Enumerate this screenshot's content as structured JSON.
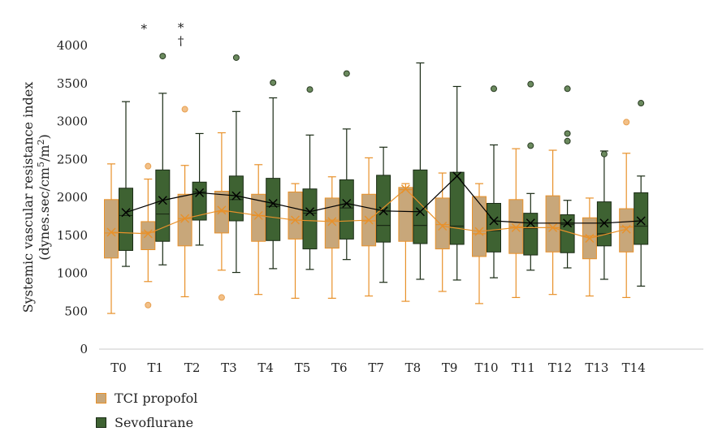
{
  "chart_data": {
    "type": "box",
    "ylabel_line1": "Systemic vascular resistance index",
    "ylabel_line2": "(dynes.sec/cm",
    "ylabel_sup1": "5",
    "ylabel_mid": "/m",
    "ylabel_sup2": "2",
    "ylabel_end": ")",
    "ylim": [
      0,
      4000
    ],
    "yticks": [
      0,
      500,
      1000,
      1500,
      2000,
      2500,
      3000,
      3500,
      4000
    ],
    "categories": [
      "T0",
      "T1",
      "T2",
      "T3",
      "T4",
      "T5",
      "T6",
      "T7",
      "T8",
      "T9",
      "T10",
      "T11",
      "T12",
      "T13",
      "T14"
    ],
    "annotations": [
      {
        "category": "T1",
        "text": "*",
        "value": 4250
      },
      {
        "category": "T2",
        "text": "*",
        "value": 4270
      },
      {
        "category": "T2",
        "text": "†",
        "value": 4090
      }
    ],
    "series": [
      {
        "name": "TCI propofol",
        "fill": "#c8a77a",
        "stroke": "#e8912a",
        "mean_marker": "#e8912a",
        "boxes": [
          {
            "min": 470,
            "q1": 1200,
            "median": 1530,
            "q3": 1970,
            "max": 2440,
            "mean": 1540,
            "outliers": []
          },
          {
            "min": 890,
            "q1": 1310,
            "median": 1540,
            "q3": 1680,
            "max": 2240,
            "mean": 1520,
            "outliers": [
              2410,
              580
            ]
          },
          {
            "min": 690,
            "q1": 1360,
            "median": 1720,
            "q3": 2040,
            "max": 2420,
            "mean": 1720,
            "outliers": [
              3160
            ]
          },
          {
            "min": 1040,
            "q1": 1530,
            "median": 1810,
            "q3": 2080,
            "max": 2850,
            "mean": 1830,
            "outliers": [
              680
            ]
          },
          {
            "min": 720,
            "q1": 1420,
            "median": 1760,
            "q3": 2040,
            "max": 2430,
            "mean": 1760,
            "outliers": []
          },
          {
            "min": 670,
            "q1": 1450,
            "median": 1700,
            "q3": 2070,
            "max": 2180,
            "mean": 1700,
            "outliers": []
          },
          {
            "min": 670,
            "q1": 1330,
            "median": 1700,
            "q3": 1990,
            "max": 2270,
            "mean": 1680,
            "outliers": []
          },
          {
            "min": 700,
            "q1": 1360,
            "median": 1690,
            "q3": 2040,
            "max": 2520,
            "mean": 1700,
            "outliers": []
          },
          {
            "min": 630,
            "q1": 1420,
            "median": 2100,
            "q3": 2130,
            "max": 2180,
            "mean": 2110,
            "outliers": []
          },
          {
            "min": 760,
            "q1": 1320,
            "median": 1640,
            "q3": 1990,
            "max": 2320,
            "mean": 1620,
            "outliers": []
          },
          {
            "min": 600,
            "q1": 1220,
            "median": 1520,
            "q3": 2010,
            "max": 2180,
            "mean": 1550,
            "outliers": []
          },
          {
            "min": 680,
            "q1": 1260,
            "median": 1610,
            "q3": 1970,
            "max": 2640,
            "mean": 1600,
            "outliers": []
          },
          {
            "min": 720,
            "q1": 1280,
            "median": 1600,
            "q3": 2020,
            "max": 2620,
            "mean": 1600,
            "outliers": []
          },
          {
            "min": 700,
            "q1": 1190,
            "median": 1490,
            "q3": 1730,
            "max": 1990,
            "mean": 1460,
            "outliers": []
          },
          {
            "min": 680,
            "q1": 1280,
            "median": 1610,
            "q3": 1850,
            "max": 2580,
            "mean": 1580,
            "outliers": [
              2990
            ]
          }
        ]
      },
      {
        "name": "Sevoflurane",
        "fill": "#3e6232",
        "stroke": "#1a2b15",
        "mean_marker": "#000000",
        "boxes": [
          {
            "min": 1090,
            "q1": 1300,
            "median": 1760,
            "q3": 2120,
            "max": 3260,
            "mean": 1800,
            "outliers": []
          },
          {
            "min": 1110,
            "q1": 1420,
            "median": 1780,
            "q3": 2360,
            "max": 3370,
            "mean": 1960,
            "outliers": [
              3860
            ]
          },
          {
            "min": 1370,
            "q1": 1700,
            "median": 2070,
            "q3": 2200,
            "max": 2840,
            "mean": 2060,
            "outliers": []
          },
          {
            "min": 1010,
            "q1": 1690,
            "median": 1970,
            "q3": 2280,
            "max": 3130,
            "mean": 2020,
            "outliers": [
              3840
            ]
          },
          {
            "min": 1060,
            "q1": 1430,
            "median": 1880,
            "q3": 2250,
            "max": 3310,
            "mean": 1920,
            "outliers": [
              3510
            ]
          },
          {
            "min": 1050,
            "q1": 1320,
            "median": 1790,
            "q3": 2110,
            "max": 2820,
            "mean": 1810,
            "outliers": [
              3420
            ]
          },
          {
            "min": 1180,
            "q1": 1450,
            "median": 1860,
            "q3": 2230,
            "max": 2900,
            "mean": 1920,
            "outliers": [
              3630
            ]
          },
          {
            "min": 880,
            "q1": 1410,
            "median": 1630,
            "q3": 2290,
            "max": 2660,
            "mean": 1820,
            "outliers": []
          },
          {
            "min": 920,
            "q1": 1390,
            "median": 1630,
            "q3": 2360,
            "max": 3770,
            "mean": 1810,
            "outliers": []
          },
          {
            "min": 910,
            "q1": 1380,
            "median": 1620,
            "q3": 2330,
            "max": 3460,
            "mean": 2280,
            "outliers": []
          },
          {
            "min": 940,
            "q1": 1280,
            "median": 1560,
            "q3": 1920,
            "max": 2690,
            "mean": 1690,
            "outliers": [
              3430
            ]
          },
          {
            "min": 1040,
            "q1": 1240,
            "median": 1590,
            "q3": 1790,
            "max": 2050,
            "mean": 1660,
            "outliers": [
              3490,
              2680
            ]
          },
          {
            "min": 1070,
            "q1": 1270,
            "median": 1640,
            "q3": 1770,
            "max": 1960,
            "mean": 1660,
            "outliers": [
              3430,
              2840,
              2740
            ]
          },
          {
            "min": 920,
            "q1": 1360,
            "median": 1520,
            "q3": 1940,
            "max": 2610,
            "mean": 1660,
            "outliers": [
              2570
            ]
          },
          {
            "min": 830,
            "q1": 1380,
            "median": 1620,
            "q3": 2060,
            "max": 2280,
            "mean": 1690,
            "outliers": [
              3240
            ]
          }
        ]
      }
    ]
  }
}
